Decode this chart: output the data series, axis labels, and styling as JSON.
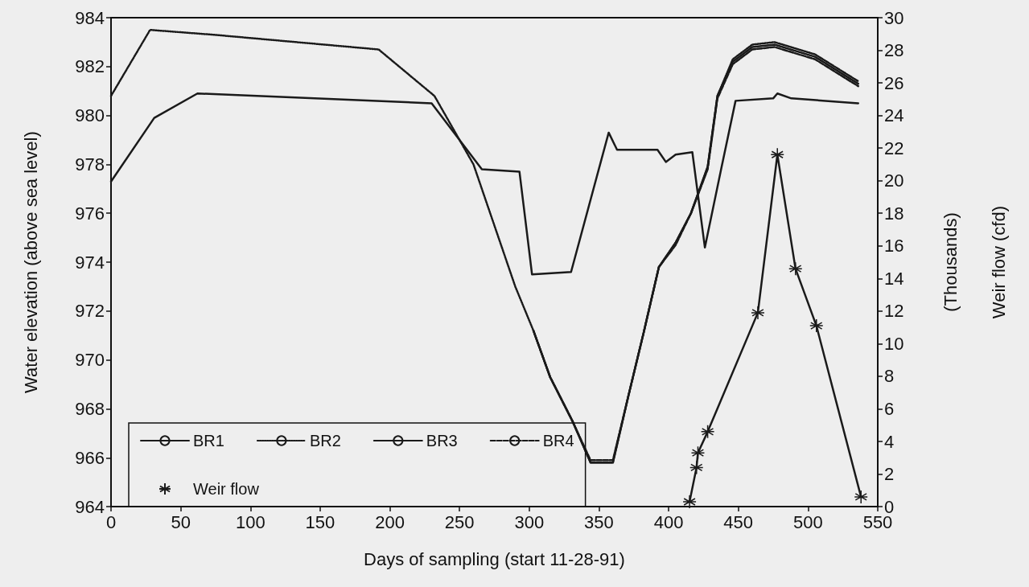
{
  "chart_data": {
    "type": "line",
    "xlabel": "Days of sampling (start 11-28-91)",
    "ylabel": "Water elevation (above sea level)",
    "y2label": "(Thousands)\nWeir flow (cfd)",
    "xlim": [
      0,
      550
    ],
    "xticks": [
      0,
      50,
      100,
      150,
      200,
      250,
      300,
      350,
      400,
      450,
      500,
      550
    ],
    "ylim": [
      964,
      984
    ],
    "yticks": [
      964,
      966,
      968,
      970,
      972,
      974,
      976,
      978,
      980,
      982,
      984
    ],
    "y2lim": [
      0,
      30
    ],
    "y2ticks": [
      0,
      2,
      4,
      6,
      8,
      10,
      12,
      14,
      16,
      18,
      20,
      22,
      24,
      26,
      28,
      30
    ],
    "grid": false,
    "legend": "bottom left",
    "marker": "none",
    "series": [
      {
        "name": "BR1",
        "color": "#1a1a1a",
        "line_style": "solid",
        "x": [
          0,
          31,
          62,
          230,
          266,
          293,
          302,
          330,
          357,
          363,
          392,
          398,
          405,
          417,
          426,
          438,
          448,
          475,
          478,
          488,
          536
        ],
        "values": [
          977.3,
          979.9,
          980.9,
          980.5,
          977.8,
          977.7,
          973.5,
          973.6,
          979.3,
          978.6,
          978.6,
          978.1,
          978.4,
          978.5,
          974.6,
          977.9,
          980.6,
          980.7,
          980.9,
          980.7,
          980.5
        ]
      },
      {
        "name": "BR2",
        "color": "#1a1a1a",
        "line_style": "dotted",
        "x": [
          0,
          28,
          74,
          192,
          232,
          260,
          290,
          303,
          315,
          331,
          344,
          360,
          371,
          382,
          393,
          405,
          416,
          428,
          435,
          446,
          460,
          476,
          505,
          536
        ],
        "values": [
          980.8,
          983.5,
          983.3,
          982.7,
          980.8,
          978.0,
          973.0,
          971.2,
          969.3,
          967.5,
          965.8,
          965.8,
          968.5,
          971.1,
          973.8,
          974.8,
          976.0,
          977.9,
          980.8,
          982.3,
          982.9,
          983.0,
          982.5,
          981.4
        ]
      },
      {
        "name": "BR3",
        "color": "#1a1a1a",
        "line_style": "solid",
        "x": [
          303,
          315,
          331,
          344,
          360,
          371,
          382,
          393,
          405,
          416,
          428,
          435,
          446,
          460,
          476,
          505,
          536
        ],
        "values": [
          971.2,
          969.3,
          967.5,
          965.8,
          965.8,
          968.5,
          971.1,
          973.8,
          974.8,
          976.0,
          977.9,
          980.8,
          982.2,
          982.8,
          982.9,
          982.4,
          981.3
        ]
      },
      {
        "name": "BR4",
        "color": "#1a1a1a",
        "line_style": "dashed",
        "x": [
          303,
          315,
          331,
          344,
          360,
          371,
          382,
          393,
          405,
          416,
          428,
          435,
          446,
          460,
          476,
          505,
          536
        ],
        "values": [
          971.2,
          969.3,
          967.5,
          965.9,
          965.9,
          968.5,
          971.1,
          973.8,
          974.7,
          976.0,
          977.8,
          980.7,
          982.1,
          982.7,
          982.8,
          982.3,
          981.2
        ]
      },
      {
        "name": "Weir flow",
        "color": "#1a1a1a",
        "line_style": "solid",
        "marker": "cross",
        "axis": "y2",
        "x": [
          415,
          420,
          421,
          428,
          464,
          478,
          491,
          506,
          538
        ],
        "values": [
          0.3,
          2.4,
          3.3,
          4.6,
          11.9,
          21.6,
          14.6,
          11.1,
          0.6
        ]
      }
    ]
  }
}
